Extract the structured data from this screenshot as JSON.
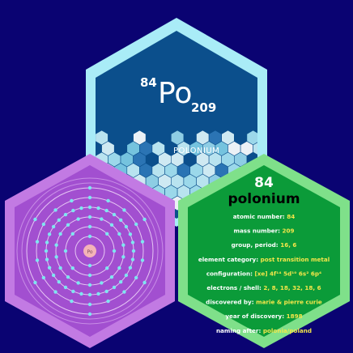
{
  "symbol_tile": {
    "atomic_number": "84",
    "symbol": "Po",
    "mass_number": "209",
    "name_caption": "POLONIUM"
  },
  "atom_tile": {
    "nucleus_label": "Po",
    "shell_electron_counts": [
      2,
      8,
      18,
      32,
      18,
      6
    ]
  },
  "info_tile": {
    "atomic_number": "84",
    "name": "polonium",
    "rows": [
      {
        "label": "atomic number:",
        "value": "84"
      },
      {
        "label": "mass number:",
        "value": "209"
      },
      {
        "label": "group, period:",
        "value": "16, 6"
      },
      {
        "label": "element category:",
        "value": "post transition metal"
      },
      {
        "label": "configuration:",
        "value": "[xe] 4f¹⁴ 5d¹⁰ 6s² 6p⁴"
      },
      {
        "label": "electrons / shell:",
        "value": "2, 8, 18, 32, 18, 6"
      },
      {
        "label": "discovered by:",
        "value": "marie & pierre curie"
      },
      {
        "label": "year of discovery:",
        "value": "1898"
      },
      {
        "label": "naming after:",
        "value": "polonia/poland"
      }
    ]
  },
  "colors": {
    "background": "#0a0372",
    "symbol_tile_border": "#a9ecf7",
    "symbol_tile_fill": "#0b4f8c",
    "atom_tile_border": "#c27ae3",
    "atom_tile_fill": "#a24fd0",
    "info_tile_border": "#7fe08a",
    "info_tile_fill": "#0b9b39",
    "electron": "#7fe6f0",
    "nucleus": "#f4b3b8"
  }
}
